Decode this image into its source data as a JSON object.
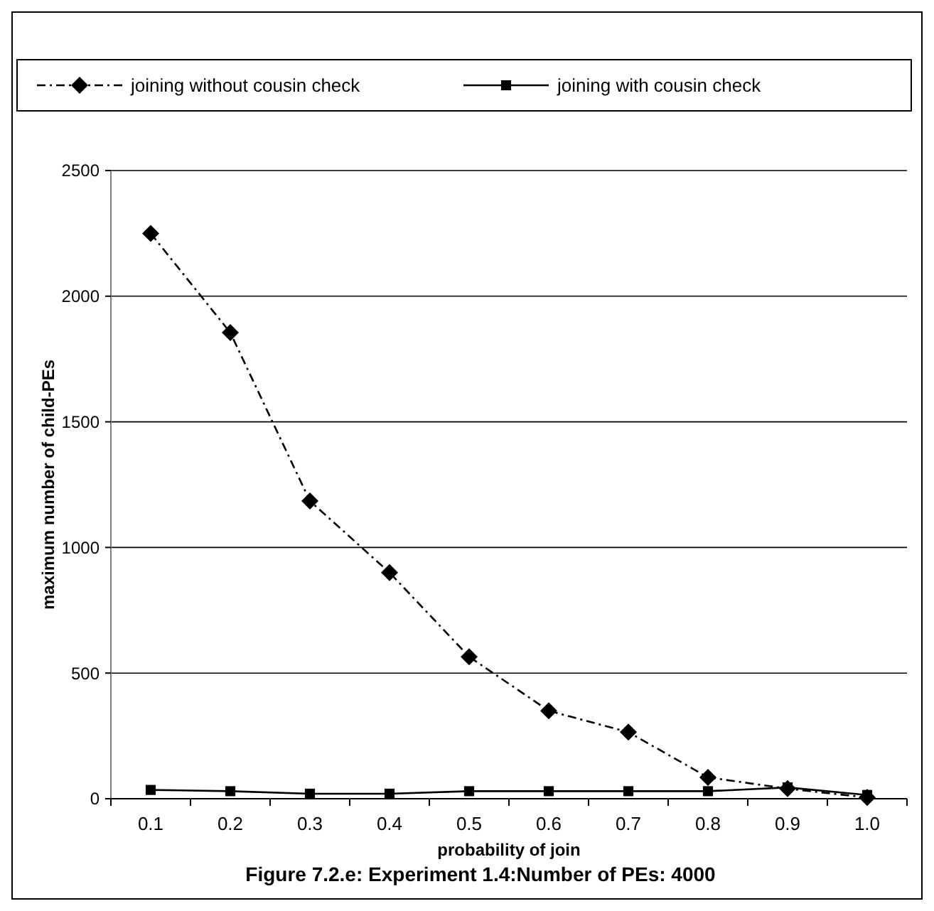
{
  "chart_data": {
    "type": "line",
    "title": "Figure 7.2.e: Experiment 1.4:Number of PEs: 4000",
    "xlabel": "probability of join",
    "ylabel": "maximum number of child-PEs",
    "categories": [
      "0.1",
      "0.2",
      "0.3",
      "0.4",
      "0.5",
      "0.6",
      "0.7",
      "0.8",
      "0.9",
      "1.0"
    ],
    "series": [
      {
        "name": "joining without cousin check",
        "color": "#000000",
        "marker": "diamond",
        "line_style": "dashed",
        "values": [
          2250,
          1855,
          1185,
          900,
          565,
          350,
          265,
          85,
          40,
          5
        ]
      },
      {
        "name": "joining with cousin check",
        "color": "#000000",
        "marker": "square",
        "line_style": "solid",
        "values": [
          35,
          30,
          20,
          20,
          30,
          30,
          30,
          30,
          45,
          15
        ]
      }
    ],
    "ylim": [
      0,
      2500
    ],
    "yticks": [
      0,
      500,
      1000,
      1500,
      2000,
      2500
    ],
    "grid": "y",
    "legend": "top"
  }
}
